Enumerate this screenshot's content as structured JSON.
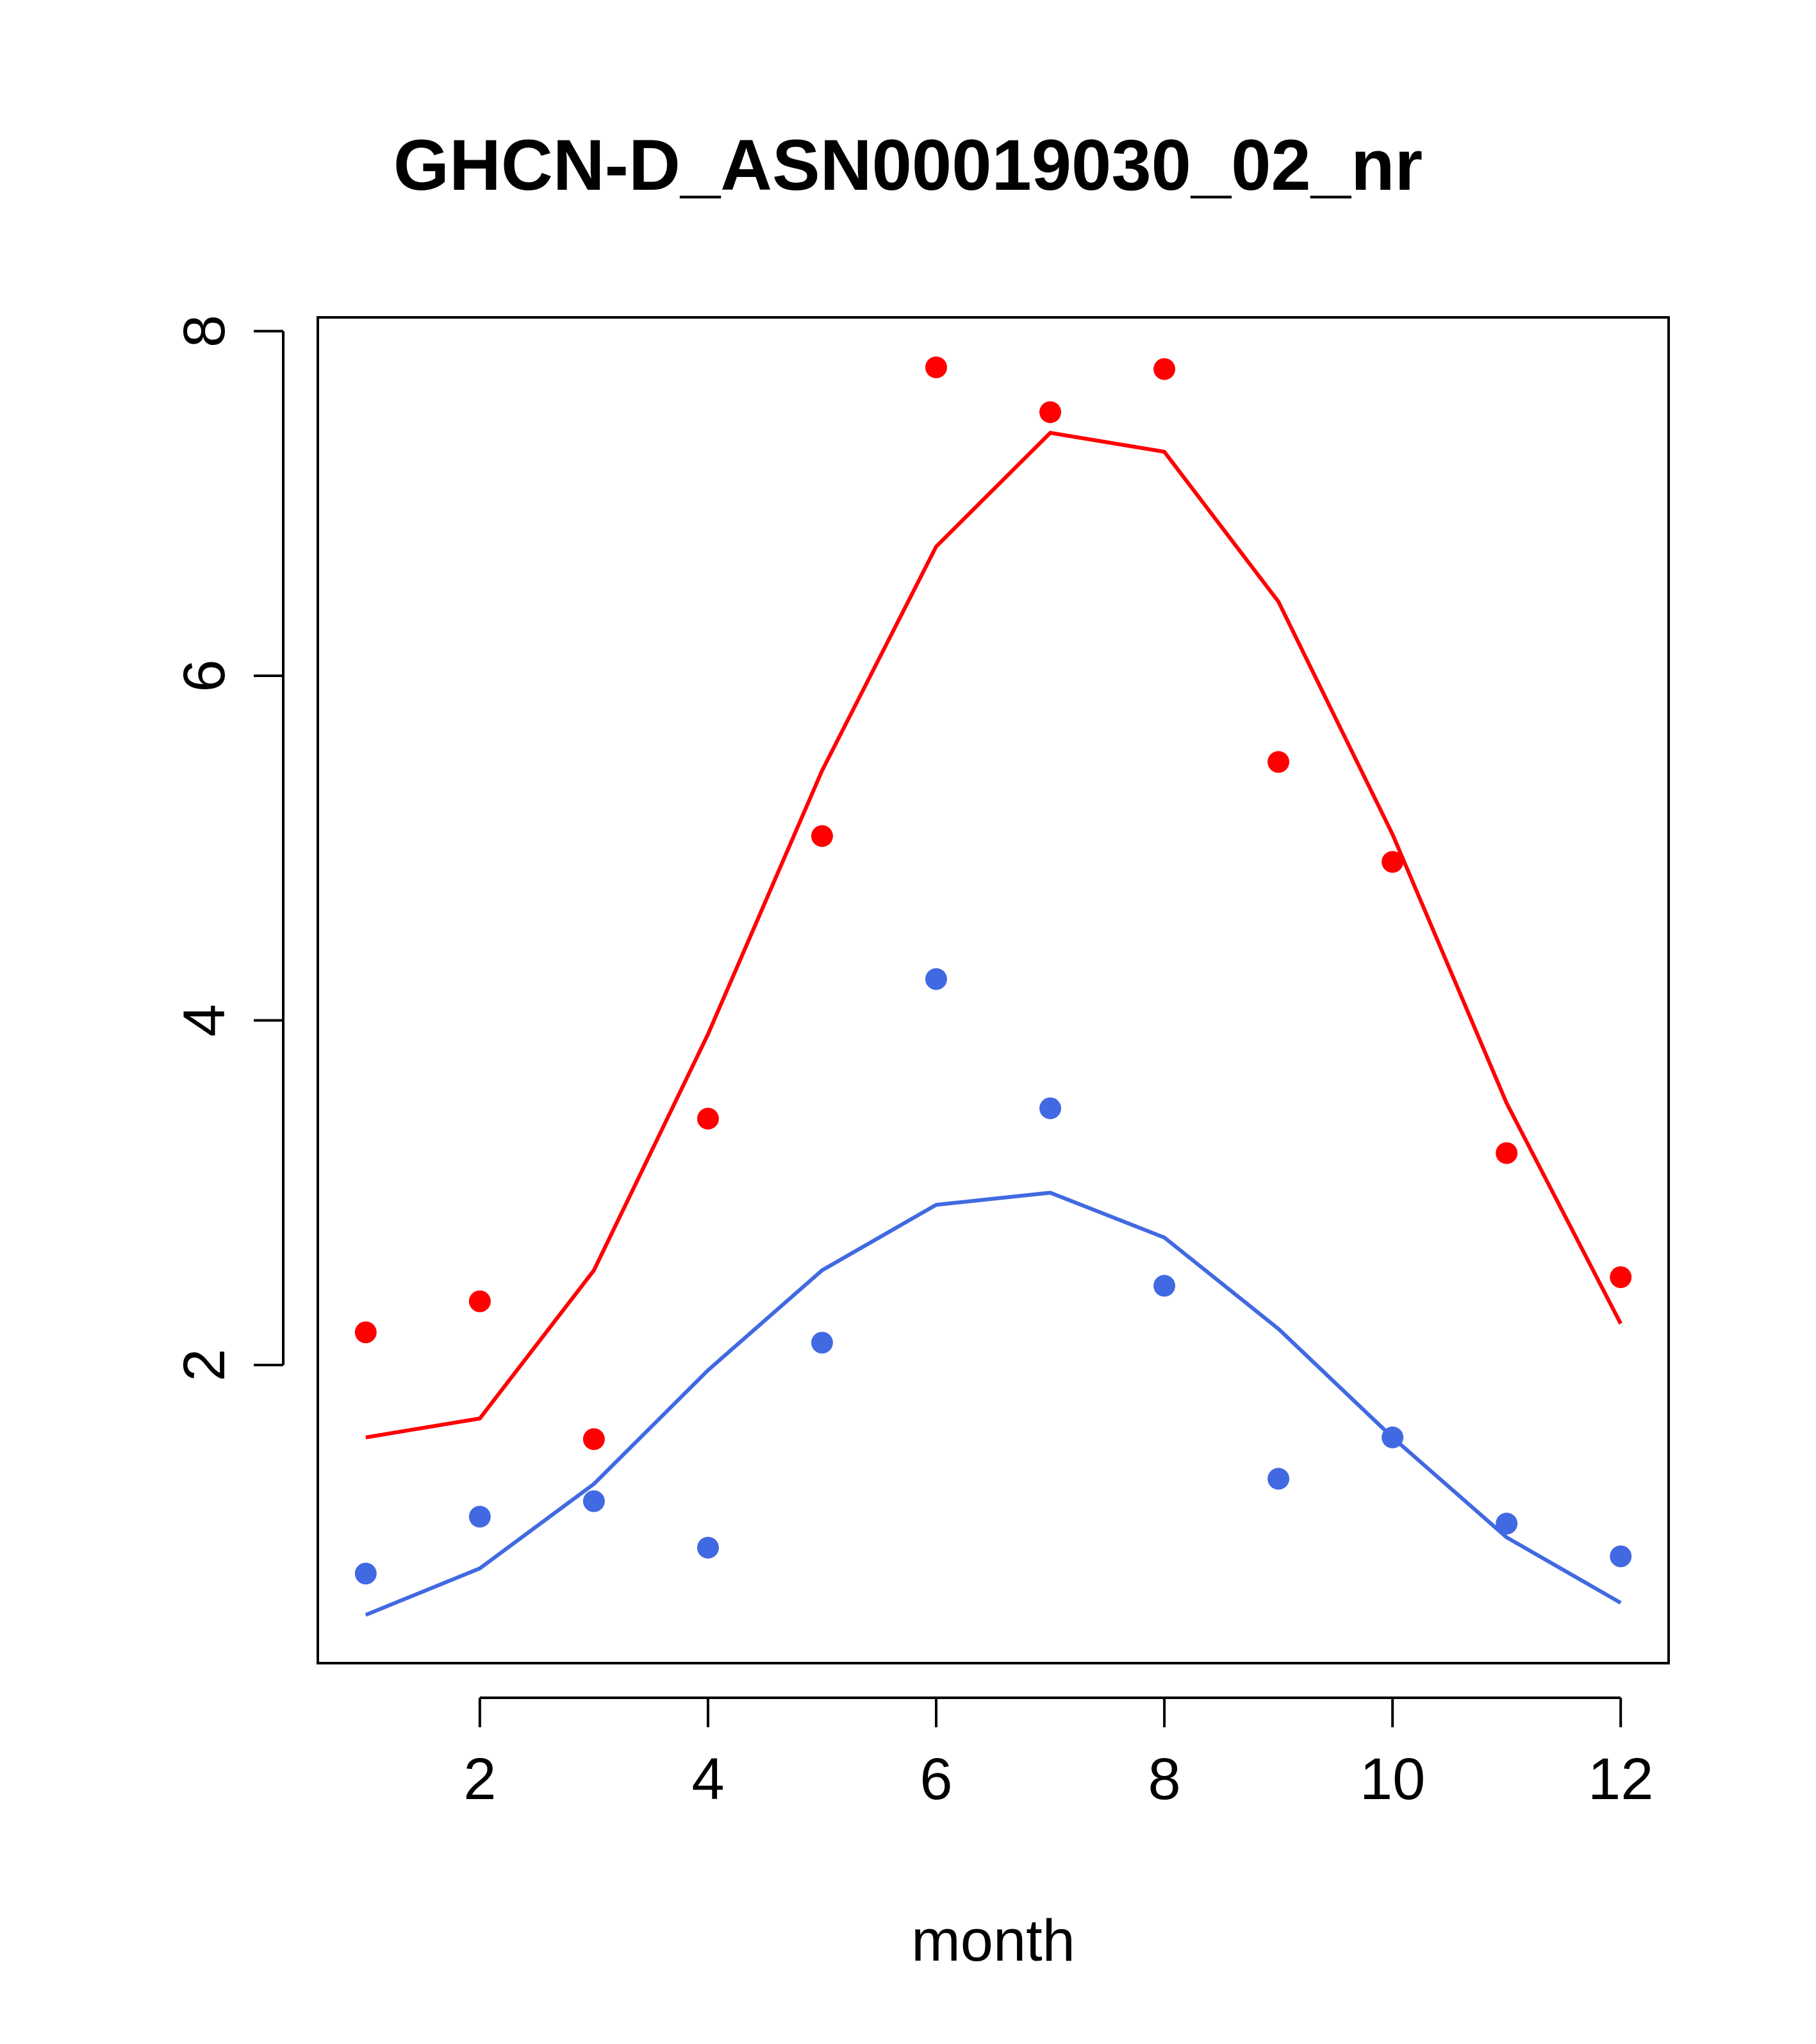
{
  "chart_data": {
    "type": "scatter",
    "title": "GHCN-D_ASN00019030_02_nr",
    "xlabel": "month",
    "ylabel": "",
    "xlim": [
      0.58,
      12.42
    ],
    "ylim": [
      0.27,
      8.08
    ],
    "x_ticks": [
      2,
      4,
      6,
      8,
      10,
      12
    ],
    "y_ticks": [
      2,
      4,
      6,
      8
    ],
    "grid": false,
    "legend": "none",
    "x": [
      1,
      2,
      3,
      4,
      5,
      6,
      7,
      8,
      9,
      10,
      11,
      12
    ],
    "series": [
      {
        "color": "#ff0000",
        "points": [
          2.19,
          2.37,
          1.57,
          3.43,
          5.07,
          7.79,
          7.53,
          7.78,
          5.5,
          4.92,
          3.23,
          2.51
        ],
        "line": [
          1.58,
          1.69,
          2.55,
          3.92,
          5.45,
          6.75,
          7.41,
          7.3,
          6.43,
          5.08,
          3.52,
          2.24
        ]
      },
      {
        "color": "#4169e1",
        "points": [
          0.79,
          1.12,
          1.21,
          0.94,
          2.13,
          4.24,
          3.49,
          2.46,
          1.34,
          1.58,
          1.08,
          0.89
        ],
        "line": [
          0.55,
          0.82,
          1.31,
          1.97,
          2.55,
          2.93,
          3.0,
          2.74,
          2.21,
          1.58,
          1.0,
          0.62
        ]
      }
    ]
  }
}
